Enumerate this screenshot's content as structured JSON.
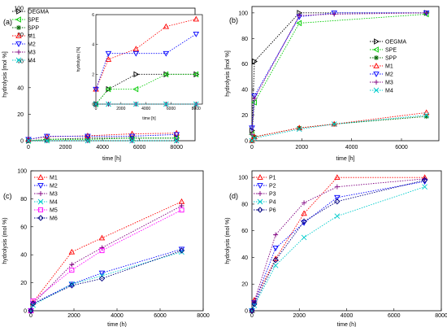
{
  "chart_data": [
    {
      "panel": "(a)",
      "type": "line",
      "xlabel": "time [h]",
      "ylabel": "hydrolysis [mol %]",
      "xlim": [
        0,
        9000
      ],
      "ylim": [
        0,
        100
      ],
      "xticks": [
        0,
        2000,
        4000,
        6000,
        8000
      ],
      "yticks": [
        0,
        20,
        40,
        60,
        80,
        100
      ],
      "legend": "top-left",
      "series": [
        {
          "name": "OEGMA",
          "color": "#000000",
          "marker": "tri-right",
          "x": [
            0,
            1000,
            3200,
            5600,
            8000
          ],
          "y": [
            0,
            1,
            2,
            2,
            2
          ]
        },
        {
          "name": "SPE",
          "color": "#00cc00",
          "marker": "tri-left",
          "x": [
            0,
            1000,
            3200,
            5600,
            8000
          ],
          "y": [
            0,
            1,
            1,
            2,
            2
          ]
        },
        {
          "name": "SPP",
          "color": "#006600",
          "marker": "star",
          "x": [
            0,
            1000,
            3200,
            5600,
            8000
          ],
          "y": [
            0,
            0,
            0,
            0,
            0
          ]
        },
        {
          "name": "M1",
          "color": "#ff0000",
          "marker": "tri-up",
          "x": [
            0,
            1000,
            3200,
            5600,
            8000
          ],
          "y": [
            1,
            3,
            3.7,
            5.2,
            5.7
          ]
        },
        {
          "name": "M2",
          "color": "#0000ff",
          "marker": "tri-down",
          "x": [
            0,
            1000,
            3200,
            5600,
            8000
          ],
          "y": [
            1,
            3.4,
            3.4,
            3.4,
            4.7
          ]
        },
        {
          "name": "M3",
          "color": "#800080",
          "marker": "plus",
          "x": [
            0,
            1000,
            3200,
            5600,
            8000
          ],
          "y": [
            0,
            0,
            0,
            0,
            0
          ]
        },
        {
          "name": "M4",
          "color": "#00cccc",
          "marker": "x",
          "x": [
            0,
            1000,
            3200,
            5600,
            8000
          ],
          "y": [
            0,
            0,
            0,
            0,
            0
          ]
        }
      ],
      "inset": {
        "xlabel": "time [h]",
        "ylabel": "hydrolysis [%]",
        "xlim": [
          0,
          8500
        ],
        "ylim": [
          0,
          6
        ],
        "xticks": [
          0,
          2000,
          4000,
          6000,
          8000
        ],
        "yticks": [
          0,
          2,
          4,
          6
        ]
      }
    },
    {
      "panel": "(b)",
      "type": "line",
      "xlabel": "time [h]",
      "ylabel": "hydrolysis [mol %]",
      "xlim": [
        0,
        7500
      ],
      "ylim": [
        0,
        105
      ],
      "xticks": [
        0,
        2000,
        4000,
        6000
      ],
      "yticks": [
        0,
        20,
        40,
        60,
        80,
        100
      ],
      "legend": "right",
      "series": [
        {
          "name": "OEGMA",
          "color": "#000000",
          "marker": "tri-right",
          "x": [
            0,
            100,
            1900,
            7000
          ],
          "y": [
            8,
            62,
            100,
            100
          ]
        },
        {
          "name": "SPE",
          "color": "#00cc00",
          "marker": "tri-left",
          "x": [
            0,
            100,
            1900,
            7000
          ],
          "y": [
            5,
            30,
            92,
            99
          ]
        },
        {
          "name": "SPP",
          "color": "#006600",
          "marker": "star",
          "x": [
            0,
            100,
            1900,
            3300,
            7000
          ],
          "y": [
            0,
            3,
            10,
            13,
            19
          ]
        },
        {
          "name": "M1",
          "color": "#ff0000",
          "marker": "tri-up",
          "x": [
            0,
            100,
            1900,
            3300,
            7000
          ],
          "y": [
            0,
            3,
            10,
            13,
            22
          ]
        },
        {
          "name": "M2",
          "color": "#0000ff",
          "marker": "tri-down",
          "x": [
            0,
            100,
            1900,
            3300,
            7000
          ],
          "y": [
            10,
            35,
            97,
            100,
            100
          ]
        },
        {
          "name": "M3",
          "color": "#800080",
          "marker": "plus",
          "x": [
            0,
            100,
            1900,
            3300,
            7000
          ],
          "y": [
            5,
            33,
            98,
            99,
            100
          ]
        },
        {
          "name": "M4",
          "color": "#00cccc",
          "marker": "x",
          "x": [
            0,
            100,
            1900,
            3300,
            7000
          ],
          "y": [
            0,
            2,
            9,
            13,
            20
          ]
        }
      ]
    },
    {
      "panel": "(c)",
      "type": "line",
      "xlabel": "time (h)",
      "ylabel": "hydrolysis (mol %)",
      "xlim": [
        0,
        8000
      ],
      "ylim": [
        0,
        100
      ],
      "xticks": [
        0,
        2000,
        4000,
        6000,
        8000
      ],
      "yticks": [
        0,
        20,
        40,
        60,
        80,
        100
      ],
      "legend": "top-left",
      "series": [
        {
          "name": "M1",
          "color": "#ff0000",
          "marker": "tri-up",
          "x": [
            0,
            100,
            1900,
            3300,
            7000
          ],
          "y": [
            0,
            6,
            42,
            52,
            78
          ]
        },
        {
          "name": "M2",
          "color": "#0000ff",
          "marker": "tri-down",
          "x": [
            0,
            100,
            1900,
            3300,
            7000
          ],
          "y": [
            0,
            5,
            19,
            27,
            44
          ]
        },
        {
          "name": "M3",
          "color": "#800080",
          "marker": "plus",
          "x": [
            0,
            100,
            1900,
            3300,
            7000
          ],
          "y": [
            0,
            5,
            33,
            45,
            75
          ]
        },
        {
          "name": "M4",
          "color": "#00cccc",
          "marker": "x",
          "x": [
            0,
            100,
            1900,
            3300,
            7000
          ],
          "y": [
            0,
            4,
            19,
            25,
            42
          ]
        },
        {
          "name": "M5",
          "color": "#ff00ff",
          "marker": "square",
          "x": [
            0,
            100,
            1900,
            3300,
            7000
          ],
          "y": [
            0,
            7,
            29,
            43,
            72
          ]
        },
        {
          "name": "M6",
          "color": "#000080",
          "marker": "diamond",
          "x": [
            0,
            100,
            1900,
            3300,
            7000
          ],
          "y": [
            0,
            5,
            18,
            23,
            43
          ]
        }
      ]
    },
    {
      "panel": "(d)",
      "type": "line",
      "xlabel": "time (h)",
      "ylabel": "hydrolysis (mol %)",
      "xlim": [
        0,
        8000
      ],
      "ylim": [
        0,
        105
      ],
      "xticks": [
        0,
        2000,
        4000,
        6000,
        8000
      ],
      "yticks": [
        0,
        20,
        40,
        60,
        80,
        100
      ],
      "legend": "top-left",
      "series": [
        {
          "name": "P1",
          "color": "#ff0000",
          "marker": "tri-up",
          "x": [
            0,
            100,
            1000,
            2200,
            3600,
            7300
          ],
          "y": [
            0,
            8,
            39,
            73,
            100,
            100
          ]
        },
        {
          "name": "P2",
          "color": "#0000ff",
          "marker": "tri-down",
          "x": [
            0,
            100,
            1000,
            2200,
            3600,
            7300
          ],
          "y": [
            0,
            6,
            47,
            66,
            85,
            97
          ]
        },
        {
          "name": "P3",
          "color": "#800080",
          "marker": "plus",
          "x": [
            0,
            100,
            1000,
            2200,
            3600,
            7300
          ],
          "y": [
            0,
            7,
            57,
            81,
            93,
            99
          ]
        },
        {
          "name": "P4",
          "color": "#00cccc",
          "marker": "x",
          "x": [
            0,
            100,
            1000,
            2200,
            3600,
            7300
          ],
          "y": [
            0,
            4,
            34,
            55,
            71,
            93
          ]
        },
        {
          "name": "P6",
          "color": "#000080",
          "marker": "diamond",
          "x": [
            0,
            100,
            1000,
            2200,
            3600,
            7300
          ],
          "y": [
            0,
            5,
            38,
            67,
            82,
            98
          ]
        }
      ]
    }
  ]
}
